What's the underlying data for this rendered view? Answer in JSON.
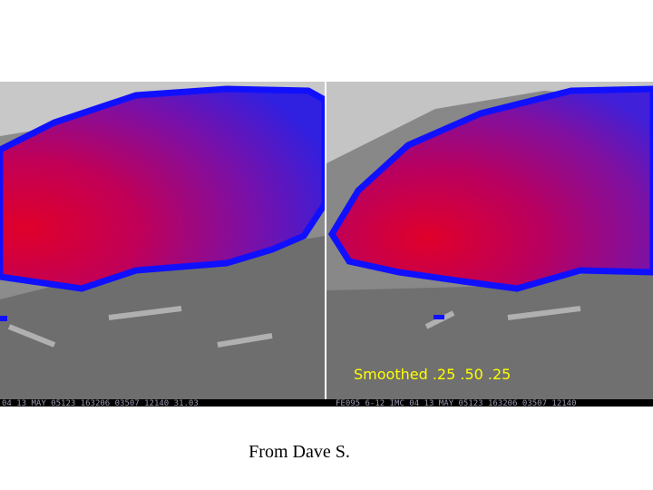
{
  "panels": [
    {
      "footer": "04 13 MAY 05123 163206 03507 12140 31.03"
    },
    {
      "footer": "FE095 6-12 IMC 04 13 MAY 05123 163206 03507 12140",
      "overlay": "Smoothed .25 .50 .25"
    }
  ],
  "caption": "From Dave S."
}
